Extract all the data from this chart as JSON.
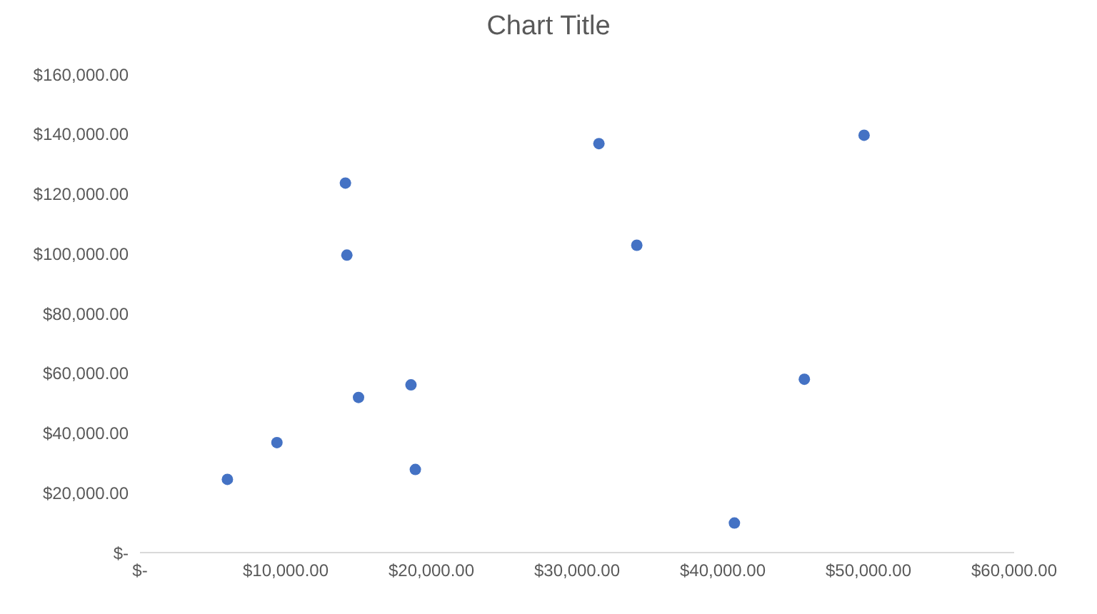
{
  "chart_data": {
    "type": "scatter",
    "title": "Chart Title",
    "x": [
      6000,
      9400,
      14100,
      14200,
      15000,
      18600,
      18900,
      31500,
      34100,
      40800,
      45600,
      49700
    ],
    "series": [
      {
        "color": "#4472c4",
        "values": [
          24500,
          36800,
          123600,
          99500,
          51900,
          56100,
          27800,
          136800,
          102800,
          9900,
          58000,
          139600
        ]
      }
    ],
    "xlim": [
      0,
      60000
    ],
    "ylim": [
      0,
      160000
    ],
    "xticks": [
      {
        "value": 0,
        "label": "$-"
      },
      {
        "value": 10000,
        "label": "$10,000.00"
      },
      {
        "value": 20000,
        "label": "$20,000.00"
      },
      {
        "value": 30000,
        "label": "$30,000.00"
      },
      {
        "value": 40000,
        "label": "$40,000.00"
      },
      {
        "value": 50000,
        "label": "$50,000.00"
      },
      {
        "value": 60000,
        "label": "$60,000.00"
      }
    ],
    "yticks": [
      {
        "value": 0,
        "label": "$-"
      },
      {
        "value": 20000,
        "label": "$20,000.00"
      },
      {
        "value": 40000,
        "label": "$40,000.00"
      },
      {
        "value": 60000,
        "label": "$60,000.00"
      },
      {
        "value": 80000,
        "label": "$80,000.00"
      },
      {
        "value": 100000,
        "label": "$100,000.00"
      },
      {
        "value": 120000,
        "label": "$120,000.00"
      },
      {
        "value": 140000,
        "label": "$140,000.00"
      },
      {
        "value": 160000,
        "label": "$160,000.00"
      }
    ],
    "marker": "circle",
    "grid": false,
    "legend": false
  }
}
